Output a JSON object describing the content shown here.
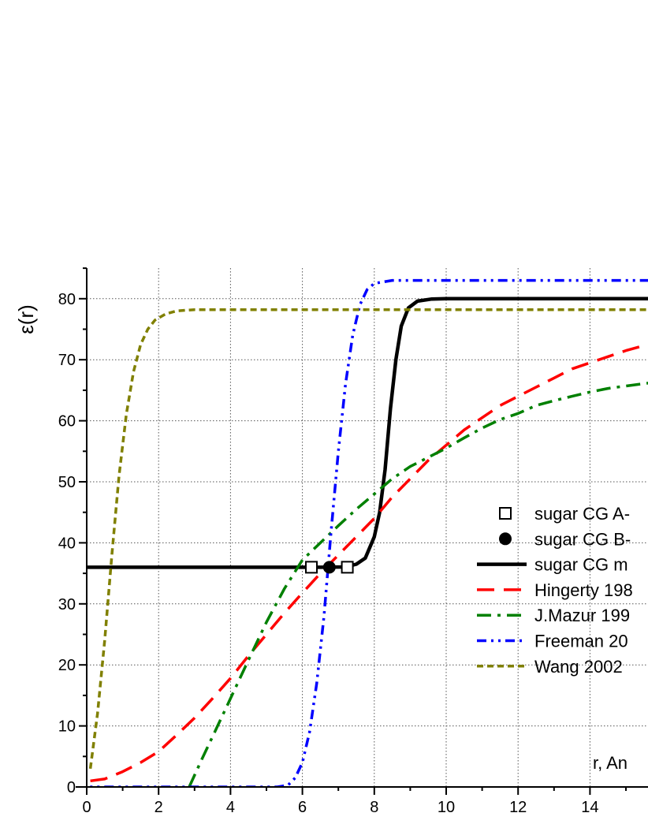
{
  "chart_data": {
    "type": "line",
    "ylabel": "ε(r)",
    "xlabel": "r, An",
    "xlim": [
      -0.3,
      15.8
    ],
    "ylim": [
      0,
      85
    ],
    "x_ticks": [
      0,
      2,
      4,
      6,
      8,
      10,
      12,
      14
    ],
    "y_ticks": [
      0,
      10,
      20,
      30,
      40,
      50,
      60,
      70,
      80
    ],
    "grid": true,
    "legend_position": "right",
    "series": [
      {
        "name": "sugar CG A-",
        "kind": "marker",
        "marker": "open-square",
        "color": "#000000",
        "points": [
          [
            6.25,
            36
          ],
          [
            7.25,
            36
          ]
        ]
      },
      {
        "name": "sugar CG B-",
        "kind": "marker",
        "marker": "filled-circle",
        "color": "#000000",
        "points": [
          [
            6.75,
            36
          ]
        ]
      },
      {
        "name": "sugar CG m",
        "kind": "line",
        "style": "solid",
        "color": "#000000",
        "points": [
          [
            -0.3,
            36
          ],
          [
            6.5,
            36
          ],
          [
            7.2,
            36.05
          ],
          [
            7.5,
            36.5
          ],
          [
            7.75,
            37.5
          ],
          [
            8.0,
            41
          ],
          [
            8.15,
            45
          ],
          [
            8.3,
            52
          ],
          [
            8.45,
            62
          ],
          [
            8.6,
            70
          ],
          [
            8.75,
            75.5
          ],
          [
            8.95,
            78.5
          ],
          [
            9.2,
            79.6
          ],
          [
            9.6,
            79.95
          ],
          [
            10,
            80
          ],
          [
            15.8,
            80
          ]
        ]
      },
      {
        "name": "Hingerty 198",
        "kind": "line",
        "style": "dash",
        "color": "#ff0000",
        "points": [
          [
            0.1,
            1
          ],
          [
            0.5,
            1.3
          ],
          [
            1,
            2.5
          ],
          [
            1.5,
            4
          ],
          [
            2,
            5.8
          ],
          [
            2.5,
            8.5
          ],
          [
            3,
            11.3
          ],
          [
            3.5,
            14.5
          ],
          [
            4,
            17.8
          ],
          [
            4.5,
            21.5
          ],
          [
            5,
            25
          ],
          [
            5.5,
            28.5
          ],
          [
            6,
            31.8
          ],
          [
            6.5,
            35
          ],
          [
            7,
            38
          ],
          [
            7.5,
            41
          ],
          [
            8,
            44
          ],
          [
            8.5,
            47.5
          ],
          [
            9,
            50.5
          ],
          [
            9.5,
            53.5
          ],
          [
            10,
            56
          ],
          [
            10.5,
            58.5
          ],
          [
            11,
            60.5
          ],
          [
            11.5,
            62.5
          ],
          [
            12,
            64
          ],
          [
            12.5,
            65.5
          ],
          [
            13,
            67
          ],
          [
            13.5,
            68.5
          ],
          [
            14,
            69.5
          ],
          [
            14.5,
            70.5
          ],
          [
            15,
            71.5
          ],
          [
            15.8,
            72.8
          ]
        ]
      },
      {
        "name": "J.Mazur 199",
        "kind": "line",
        "style": "dash-dot",
        "color": "#008000",
        "points": [
          [
            2.85,
            0
          ],
          [
            3.2,
            4.5
          ],
          [
            3.6,
            9.5
          ],
          [
            4,
            14.5
          ],
          [
            4.5,
            20.8
          ],
          [
            5,
            27
          ],
          [
            5.5,
            32.5
          ],
          [
            6,
            37.2
          ],
          [
            6.5,
            40
          ],
          [
            7,
            42.8
          ],
          [
            7.5,
            45.5
          ],
          [
            8,
            48
          ],
          [
            8.5,
            50.5
          ],
          [
            9,
            52.5
          ],
          [
            9.5,
            54
          ],
          [
            10,
            55.5
          ],
          [
            10.5,
            57.2
          ],
          [
            11,
            58.8
          ],
          [
            11.5,
            60.2
          ],
          [
            12,
            61.2
          ],
          [
            12.5,
            62.5
          ],
          [
            13,
            63.3
          ],
          [
            13.5,
            64
          ],
          [
            14,
            64.7
          ],
          [
            14.5,
            65.3
          ],
          [
            15,
            65.7
          ],
          [
            15.8,
            66.3
          ]
        ]
      },
      {
        "name": "Freeman 20",
        "kind": "line",
        "style": "dash-dot-dot",
        "color": "#0000ff",
        "points": [
          [
            -0.3,
            0
          ],
          [
            5.3,
            0
          ],
          [
            5.6,
            0.3
          ],
          [
            5.8,
            1.5
          ],
          [
            6.0,
            4
          ],
          [
            6.2,
            9
          ],
          [
            6.4,
            17
          ],
          [
            6.6,
            28
          ],
          [
            6.8,
            42
          ],
          [
            7.0,
            55
          ],
          [
            7.2,
            66
          ],
          [
            7.4,
            74
          ],
          [
            7.6,
            79
          ],
          [
            7.8,
            81.5
          ],
          [
            8.0,
            82.5
          ],
          [
            8.5,
            83
          ],
          [
            15.8,
            83
          ]
        ]
      },
      {
        "name": "Wang 2002",
        "kind": "line",
        "style": "short-dash",
        "color": "#808000",
        "points": [
          [
            0.1,
            3
          ],
          [
            0.3,
            12
          ],
          [
            0.5,
            24
          ],
          [
            0.7,
            38
          ],
          [
            0.9,
            51
          ],
          [
            1.1,
            61
          ],
          [
            1.3,
            68
          ],
          [
            1.5,
            72.5
          ],
          [
            1.7,
            75
          ],
          [
            1.9,
            76.5
          ],
          [
            2.2,
            77.5
          ],
          [
            2.5,
            78
          ],
          [
            3,
            78.2
          ],
          [
            15.8,
            78.2
          ]
        ]
      }
    ]
  }
}
